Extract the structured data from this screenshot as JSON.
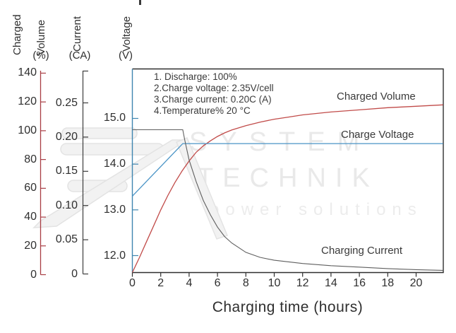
{
  "watermark": {
    "line1": "SYSTEM",
    "line2": "TECHNIK",
    "line3": "power solutions"
  },
  "annotations": [
    "1. Discharge: 100%",
    "2.Charge voltage: 2.35V/cell",
    "3.Charge current: 0.20C (A)",
    "4.Temperature% 20 °C"
  ],
  "curve_labels": {
    "volume": "Charged Volume",
    "voltage": "Charge Voltage",
    "current": "Charging Current"
  },
  "axes": {
    "charged_volume": {
      "word1": "Charged",
      "word2": "Volume",
      "unit": "(%)",
      "ticks": [
        0,
        20,
        40,
        60,
        80,
        100,
        120,
        140
      ],
      "color": "#a83d44"
    },
    "current": {
      "word1": "Current",
      "unit": "(CA)",
      "ticks": [
        "0",
        "0.05",
        "0.10",
        "0.15",
        "0.20",
        "0.25"
      ],
      "color": "#3c3c3c"
    },
    "voltage": {
      "word1": "Voltage",
      "unit": "(V)",
      "ticks": [
        "12.0",
        "13.0",
        "14.0",
        "15.0"
      ],
      "color": "#3f86b0"
    },
    "x": {
      "label": "Charging time (hours)",
      "ticks": [
        0,
        2,
        4,
        6,
        8,
        10,
        12,
        14,
        16,
        18,
        20
      ]
    }
  },
  "chart_data": {
    "type": "line",
    "title": "",
    "xlabel": "Charging time (hours)",
    "x_range": [
      0,
      21.9
    ],
    "grid": false,
    "legend_position": "inline-labels",
    "axis_ranges": {
      "charged_volume_pct": [
        0,
        140
      ],
      "current_ca": [
        0,
        0.25
      ],
      "voltage_v": [
        12,
        15
      ]
    },
    "conditions": {
      "discharge_pct": 100,
      "charge_voltage_v_per_cell": 2.35,
      "charge_current_c": 0.2,
      "temperature_c": 20
    },
    "series": [
      {
        "name": "Charged Volume",
        "axis": "charged_volume_pct",
        "color": "#c14b49",
        "x": [
          0,
          0.5,
          1,
          1.5,
          2,
          2.5,
          3,
          3.5,
          4,
          4.5,
          5,
          5.5,
          6,
          6.5,
          7,
          8,
          9,
          10,
          11,
          12,
          14,
          16,
          18,
          20,
          21.9
        ],
        "y": [
          1.5,
          12,
          23,
          34,
          45,
          55,
          64,
          72,
          79,
          85,
          89.5,
          93,
          96,
          98.5,
          100.5,
          103.5,
          106,
          108,
          109.5,
          111,
          113,
          114.5,
          116,
          117,
          118
        ]
      },
      {
        "name": "Charge Voltage",
        "axis": "voltage_v",
        "color": "#4a94c6",
        "x": [
          0,
          3.55,
          21.9
        ],
        "y": [
          13.3,
          14.45,
          14.45
        ]
      },
      {
        "name": "Charging Current",
        "axis": "current_ca",
        "color": "#5f5f5f",
        "x": [
          0,
          3.55,
          3.7,
          4,
          4.5,
          5,
          5.5,
          6,
          6.5,
          7,
          8,
          9,
          10,
          12,
          14,
          16,
          18,
          20,
          21.9
        ],
        "y": [
          0.2,
          0.2,
          0.185,
          0.158,
          0.128,
          0.102,
          0.082,
          0.065,
          0.052,
          0.043,
          0.03,
          0.023,
          0.019,
          0.0145,
          0.0115,
          0.0095,
          0.0075,
          0.006,
          0.005
        ]
      }
    ]
  }
}
